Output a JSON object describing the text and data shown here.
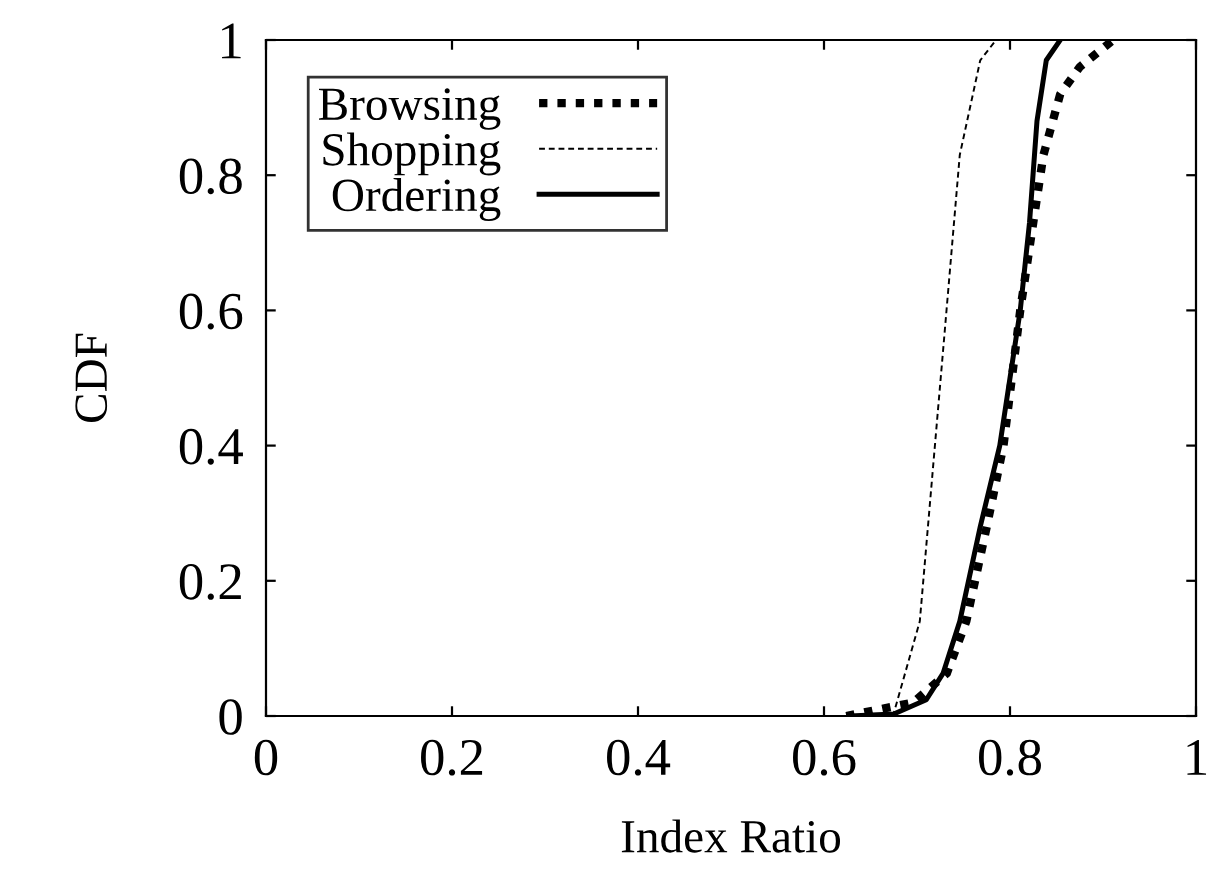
{
  "chart_data": {
    "type": "line",
    "xlabel": "Index Ratio",
    "ylabel": "CDF",
    "xlim": [
      0,
      1
    ],
    "ylim": [
      0,
      1
    ],
    "xticks": [
      0,
      0.2,
      0.4,
      0.6,
      0.8,
      1
    ],
    "yticks": [
      0,
      0.2,
      0.4,
      0.6,
      0.8,
      1
    ],
    "grid": false,
    "legend": "top left",
    "marker": "none",
    "series": [
      {
        "name": "Browsing",
        "color": "#000000",
        "line_style": "dotted",
        "x": [
          0.624,
          0.696,
          0.732,
          0.753,
          0.775,
          0.793,
          0.811,
          0.825,
          0.836,
          0.854,
          0.875,
          0.911
        ],
        "values": [
          0,
          0.02,
          0.063,
          0.14,
          0.28,
          0.4,
          0.6,
          0.73,
          0.83,
          0.92,
          0.96,
          1
        ]
      },
      {
        "name": "Shopping",
        "color": "#000000",
        "line_style": "dashed",
        "x": [
          0.64,
          0.675,
          0.703,
          0.728,
          0.746,
          0.768,
          0.785
        ],
        "values": [
          0,
          0.004,
          0.14,
          0.54,
          0.83,
          0.97,
          1
        ]
      },
      {
        "name": "Ordering",
        "color": "#000000",
        "line_style": "solid",
        "x": [
          0.628,
          0.675,
          0.71,
          0.728,
          0.746,
          0.768,
          0.789,
          0.811,
          0.821,
          0.829,
          0.839,
          0.854
        ],
        "values": [
          0,
          0.003,
          0.024,
          0.063,
          0.14,
          0.28,
          0.4,
          0.6,
          0.73,
          0.88,
          0.97,
          1
        ]
      }
    ]
  }
}
